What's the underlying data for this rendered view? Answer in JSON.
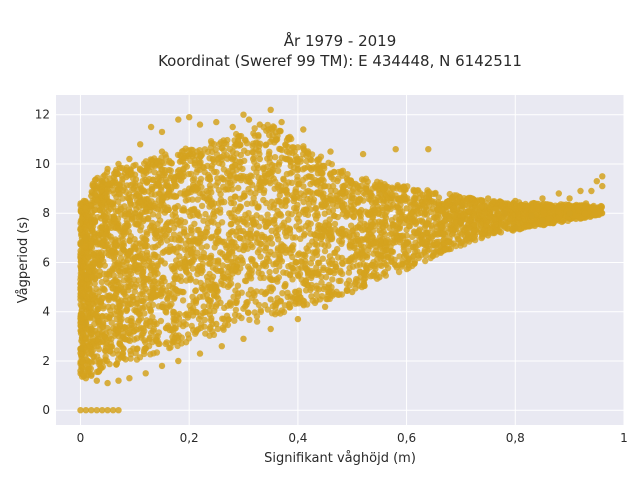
{
  "chart_data": {
    "type": "scatter",
    "title": "År 1979 - 2019",
    "subtitle": "Koordinat (Sweref 99 TM): E 434448, N 6142511",
    "xlabel": "Signifikant våghöjd (m)",
    "ylabel": "Vågperiod (s)",
    "xlim": [
      -0.045,
      1.0
    ],
    "ylim": [
      -0.6,
      12.8
    ],
    "x_ticks": [
      0,
      0.2,
      0.4,
      0.6,
      0.8,
      1
    ],
    "x_tick_labels": [
      "0",
      "0,2",
      "0,4",
      "0,6",
      "0,8",
      "1"
    ],
    "y_ticks": [
      0,
      2,
      4,
      6,
      8,
      10,
      12
    ],
    "y_tick_labels": [
      "0",
      "2",
      "4",
      "6",
      "8",
      "10",
      "12"
    ],
    "grid": true,
    "legend": "none",
    "marker_color": "#D4A21E",
    "plot_background": "#E9E9F2",
    "points": [
      [
        0.0,
        0.0
      ],
      [
        0.01,
        0.0
      ],
      [
        0.02,
        0.0
      ],
      [
        0.03,
        0.0
      ],
      [
        0.04,
        0.0
      ],
      [
        0.05,
        0.0
      ],
      [
        0.06,
        0.0
      ],
      [
        0.07,
        0.0
      ],
      [
        0.0,
        1.6
      ],
      [
        0.01,
        1.3
      ],
      [
        0.02,
        1.4
      ],
      [
        0.03,
        1.2
      ],
      [
        0.05,
        1.1
      ],
      [
        0.07,
        1.2
      ],
      [
        0.09,
        1.3
      ],
      [
        0.12,
        1.5
      ],
      [
        0.15,
        1.8
      ],
      [
        0.18,
        2.0
      ],
      [
        0.22,
        2.3
      ],
      [
        0.26,
        2.6
      ],
      [
        0.3,
        2.9
      ],
      [
        0.35,
        3.3
      ],
      [
        0.4,
        3.7
      ],
      [
        0.45,
        4.2
      ],
      [
        0.5,
        4.8
      ],
      [
        0.55,
        5.4
      ],
      [
        0.6,
        6.0
      ],
      [
        0.65,
        6.4
      ],
      [
        0.7,
        6.8
      ],
      [
        0.75,
        7.1
      ],
      [
        0.8,
        7.4
      ],
      [
        0.85,
        7.7
      ],
      [
        0.9,
        8.0
      ],
      [
        0.93,
        8.4
      ],
      [
        0.96,
        9.5
      ],
      [
        0.95,
        9.3
      ],
      [
        0.92,
        8.9
      ],
      [
        0.88,
        8.8
      ],
      [
        0.85,
        8.6
      ],
      [
        0.8,
        8.5
      ],
      [
        0.75,
        8.6
      ],
      [
        0.7,
        8.3
      ],
      [
        0.65,
        8.4
      ],
      [
        0.6,
        8.2
      ],
      [
        0.55,
        8.8
      ],
      [
        0.5,
        8.6
      ],
      [
        0.45,
        9.1
      ],
      [
        0.42,
        9.5
      ],
      [
        0.4,
        9.8
      ],
      [
        0.38,
        10.5
      ],
      [
        0.36,
        11.0
      ],
      [
        0.35,
        12.2
      ],
      [
        0.33,
        11.6
      ],
      [
        0.31,
        11.8
      ],
      [
        0.28,
        11.5
      ],
      [
        0.25,
        11.7
      ],
      [
        0.2,
        11.9
      ],
      [
        0.18,
        11.8
      ],
      [
        0.15,
        11.3
      ],
      [
        0.13,
        11.5
      ],
      [
        0.11,
        10.8
      ],
      [
        0.09,
        10.2
      ],
      [
        0.07,
        10.0
      ],
      [
        0.05,
        9.8
      ],
      [
        0.04,
        9.3
      ],
      [
        0.03,
        9.0
      ],
      [
        0.02,
        8.7
      ],
      [
        0.01,
        7.0
      ],
      [
        0.0,
        6.8
      ],
      [
        0.01,
        5.5
      ],
      [
        0.0,
        4.5
      ],
      [
        0.01,
        3.5
      ],
      [
        0.02,
        3.3
      ],
      [
        0.0,
        2.5
      ],
      [
        0.64,
        10.6
      ],
      [
        0.58,
        10.6
      ],
      [
        0.52,
        10.4
      ],
      [
        0.46,
        10.5
      ],
      [
        0.41,
        11.4
      ],
      [
        0.37,
        11.7
      ],
      [
        0.3,
        12.0
      ],
      [
        0.22,
        11.6
      ],
      [
        0.62,
        7.2
      ],
      [
        0.7,
        7.6
      ],
      [
        0.78,
        8.0
      ],
      [
        0.83,
        7.9
      ],
      [
        0.88,
        8.3
      ],
      [
        0.9,
        8.6
      ],
      [
        0.94,
        8.9
      ],
      [
        0.96,
        9.1
      ],
      [
        0.1,
        5.0
      ],
      [
        0.2,
        6.0
      ],
      [
        0.3,
        6.5
      ],
      [
        0.15,
        4.2
      ],
      [
        0.25,
        5.0
      ],
      [
        0.35,
        7.0
      ],
      [
        0.45,
        7.5
      ],
      [
        0.55,
        7.3
      ],
      [
        0.2,
        9.0
      ],
      [
        0.3,
        9.5
      ],
      [
        0.1,
        8.0
      ],
      [
        0.25,
        3.5
      ],
      [
        0.35,
        4.5
      ],
      [
        0.4,
        5.5
      ],
      [
        0.5,
        6.2
      ],
      [
        0.6,
        6.8
      ],
      [
        0.28,
        10.5
      ],
      [
        0.33,
        10.2
      ],
      [
        0.15,
        10.5
      ],
      [
        0.18,
        9.5
      ],
      [
        0.08,
        6.5
      ],
      [
        0.12,
        2.5
      ]
    ]
  }
}
